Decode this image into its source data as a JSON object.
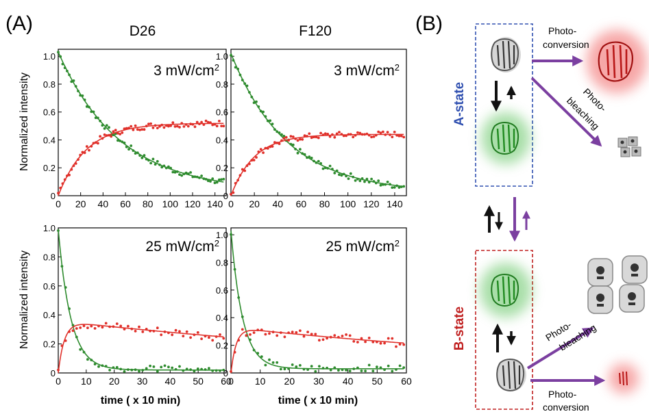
{
  "panel_labels": [
    "(A)",
    "(B)"
  ],
  "columns": [
    "D26",
    "F120"
  ],
  "shared": {
    "ylabel": "Normalized intensity",
    "xlabel": "time ( x 10 min)"
  },
  "colors": {
    "green": "#2e8b2e",
    "red": "#e0302a",
    "purple": "#7b3fa0",
    "blue": "#3050b0",
    "darkred": "#c02020"
  },
  "chart_data": [
    {
      "type": "scatter",
      "id": "d26-3",
      "power_prefix": "3 mW/cm",
      "power_sup": "2",
      "xlim": [
        0,
        150
      ],
      "ylim": [
        0,
        1.05
      ],
      "xticks": [
        "0",
        "20",
        "40",
        "60",
        "80",
        "100",
        "120",
        "140"
      ],
      "yticks": [
        "0",
        "0.2",
        "0.4",
        "0.6",
        "0.8",
        "1.0"
      ],
      "ytick_values": [
        0,
        0.2,
        0.4,
        0.6,
        0.8,
        1.0
      ],
      "series": [
        {
          "color": "green",
          "fit": {
            "kind": "decay",
            "a": 1.0,
            "tau": 55,
            "c": 0.03
          }
        },
        {
          "color": "red",
          "fit": {
            "kind": "rise",
            "a": 0.52,
            "tau": 25,
            "c": 0.0
          }
        }
      ]
    },
    {
      "type": "scatter",
      "id": "f120-3",
      "power_prefix": "3 mW/cm",
      "power_sup": "2",
      "xlim": [
        0,
        150
      ],
      "ylim": [
        0,
        1.05
      ],
      "xticks": [
        "0",
        "20",
        "40",
        "60",
        "80",
        "100",
        "120",
        "140"
      ],
      "yticks": [
        "0",
        "0.2",
        "0.4",
        "0.6",
        "0.8",
        "1.0"
      ],
      "ytick_values": [
        0,
        0.2,
        0.4,
        0.6,
        0.8,
        1.0
      ],
      "series": [
        {
          "color": "green",
          "fit": {
            "kind": "decay",
            "a": 1.0,
            "tau": 48,
            "c": 0.02
          }
        },
        {
          "color": "red",
          "fit": {
            "kind": "rise",
            "a": 0.44,
            "tau": 20,
            "c": 0.0
          }
        }
      ]
    },
    {
      "type": "scatter",
      "id": "d26-25",
      "power_prefix": "25 mW/cm",
      "power_sup": "2",
      "xlim": [
        0,
        60
      ],
      "ylim": [
        0,
        1.0
      ],
      "xticks": [
        "0",
        "10",
        "20",
        "30",
        "40",
        "50",
        "60"
      ],
      "yticks": [
        "0",
        "0.2",
        "0.4",
        "0.6",
        "0.8",
        "1.0"
      ],
      "ytick_values": [
        0,
        0.2,
        0.4,
        0.6,
        0.8,
        1.0
      ],
      "series": [
        {
          "color": "green",
          "fit": {
            "kind": "decay",
            "a": 0.97,
            "tau": 4.5,
            "c": 0.02
          }
        },
        {
          "color": "red",
          "fit": {
            "kind": "risefall",
            "a": 0.36,
            "tau1": 2.2,
            "tau2": 160,
            "c": 0.0
          }
        }
      ]
    },
    {
      "type": "scatter",
      "id": "f120-25",
      "power_prefix": "25 mW/cm",
      "power_sup": "2",
      "xlim": [
        0,
        60
      ],
      "ylim": [
        0,
        1.05
      ],
      "xticks": [
        "0",
        "10",
        "20",
        "30",
        "40",
        "50",
        "60"
      ],
      "yticks": [
        "0",
        "0.2",
        "0.4",
        "0.6",
        "0.8",
        "1.0"
      ],
      "ytick_values": [
        0,
        0.2,
        0.4,
        0.6,
        0.8,
        1.0
      ],
      "series": [
        {
          "color": "green",
          "fit": {
            "kind": "decay",
            "a": 1.0,
            "tau": 4.0,
            "c": 0.03
          }
        },
        {
          "color": "red",
          "fit": {
            "kind": "risefall",
            "a": 0.33,
            "tau1": 1.8,
            "tau2": 140,
            "c": 0.0
          }
        }
      ]
    }
  ],
  "diagram": {
    "a_state": "A-state",
    "b_state": "B-state",
    "photoconversion_top": [
      "Photo-",
      "conversion"
    ],
    "photobleaching_top": [
      "Photo-",
      "bleaching"
    ],
    "photobleaching_bottom": [
      "Photo-",
      "bleaching"
    ],
    "photoconversion_bottom": [
      "Photo-",
      "conversion"
    ]
  }
}
